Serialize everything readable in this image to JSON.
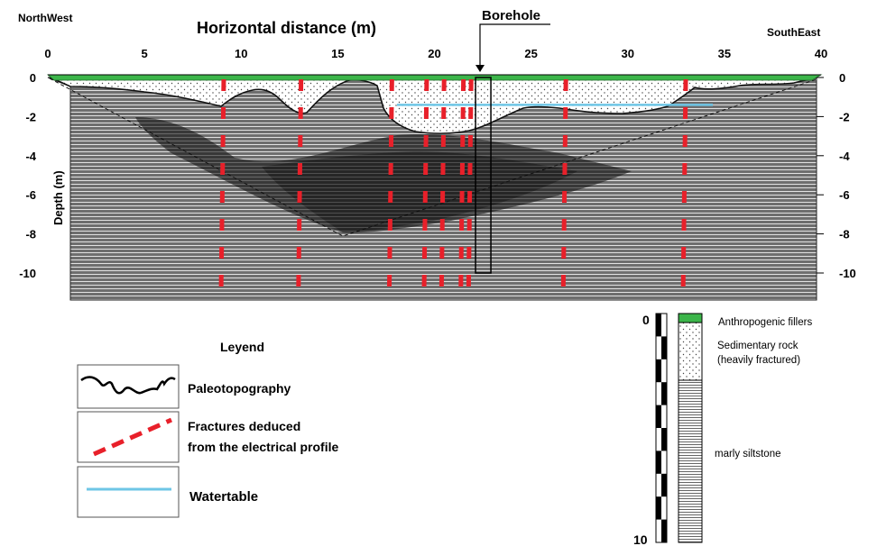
{
  "profile": {
    "title": "Horizontal distance (m)",
    "direction_left": "NorthWest",
    "direction_right": "SouthEast",
    "y_axis_label": "Depth (m)",
    "x_ticks": [
      "0",
      "5",
      "10",
      "15",
      "20",
      "25",
      "30",
      "35",
      "40"
    ],
    "y_ticks_left": [
      "0",
      "-2",
      "-4",
      "-6",
      "-8",
      "-10"
    ],
    "y_ticks_right": [
      "0",
      "-2",
      "-4",
      "-6",
      "-8",
      "-10"
    ],
    "borehole_label": "Borehole",
    "x_range": [
      0,
      40
    ],
    "depth_range": [
      0,
      -11.5
    ],
    "borehole_x": 22.5,
    "borehole_bottom_depth": -10,
    "watertable_depth": -1.4,
    "fracture_x": [
      9.1,
      13.1,
      17.8,
      19.6,
      20.5,
      21.5,
      21.9,
      26.8,
      33
    ],
    "colors": {
      "fillers": "#3cb54a",
      "siltstone": "#6e6e6e",
      "dark_zone": "#333333",
      "watertable": "#6ec6e6",
      "fracture": "#e8202a"
    }
  },
  "legend": {
    "title": "Leyend",
    "items": [
      {
        "label": "Paleotopography",
        "icon": "paleotopography-line"
      },
      {
        "label": "Fractures deduced\nfrom the electrical profile",
        "icon": "red-dashed-line"
      },
      {
        "label": "Watertable",
        "icon": "blue-line"
      }
    ]
  },
  "column": {
    "top_label": "0",
    "bottom_label": "10",
    "layers": [
      {
        "label": "Anthropogenic fillers"
      },
      {
        "label": "Sedimentary rock\n(heavily fractured)"
      },
      {
        "label": "marly siltstone"
      }
    ]
  }
}
